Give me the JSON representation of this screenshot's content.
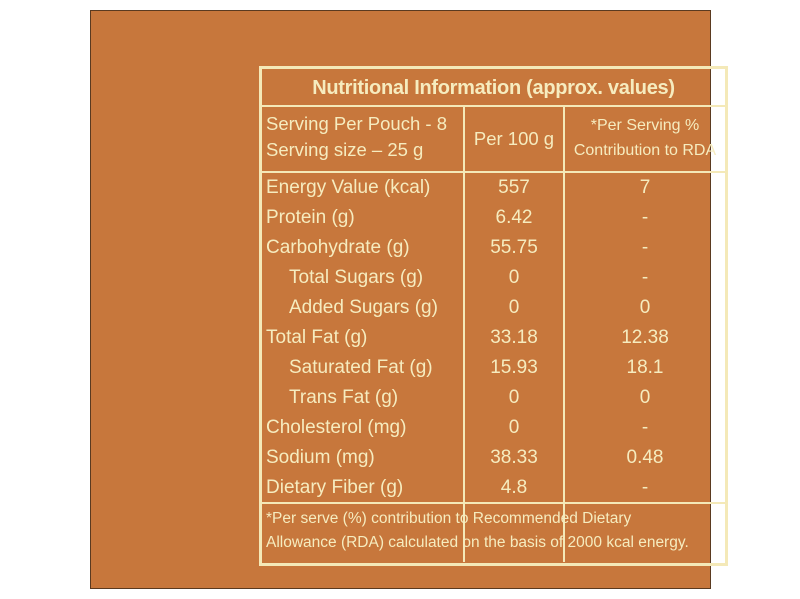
{
  "title": "Nutritional Information (approx. values)",
  "header": {
    "serving_per_pouch": "Serving Per Pouch - 8",
    "serving_size": "Serving size – 25 g",
    "per_100g": "Per 100 g",
    "per_serving_line1": "*Per Serving %",
    "per_serving_line2": "Contribution to RDA"
  },
  "rows": [
    {
      "name": "Energy Value (kcal)",
      "per100": "557",
      "rda": "7",
      "sub": false
    },
    {
      "name": "Protein (g)",
      "per100": "6.42",
      "rda": "-",
      "sub": false
    },
    {
      "name": "Carbohydrate (g)",
      "per100": "55.75",
      "rda": "-",
      "sub": false
    },
    {
      "name": "Total Sugars (g)",
      "per100": "0",
      "rda": "-",
      "sub": true
    },
    {
      "name": "Added Sugars (g)",
      "per100": "0",
      "rda": "0",
      "sub": true
    },
    {
      "name": "Total Fat (g)",
      "per100": "33.18",
      "rda": "12.38",
      "sub": false
    },
    {
      "name": "Saturated Fat (g)",
      "per100": "15.93",
      "rda": "18.1",
      "sub": true
    },
    {
      "name": "Trans Fat (g)",
      "per100": "0",
      "rda": "0",
      "sub": true
    },
    {
      "name": "Cholesterol (mg)",
      "per100": "0",
      "rda": "-",
      "sub": false
    },
    {
      "name": "Sodium (mg)",
      "per100": "38.33",
      "rda": "0.48",
      "sub": false
    },
    {
      "name": "Dietary Fiber (g)",
      "per100": "4.8",
      "rda": "-",
      "sub": false
    }
  ],
  "footnote_line1": "*Per serve (%) contribution to Recommended Dietary",
  "footnote_line2": "Allowance (RDA) calculated on the basis of 2000 kcal energy.",
  "colors": {
    "background": "#c7773c",
    "text": "#f6ecbf",
    "border": "#f4e9b8"
  }
}
